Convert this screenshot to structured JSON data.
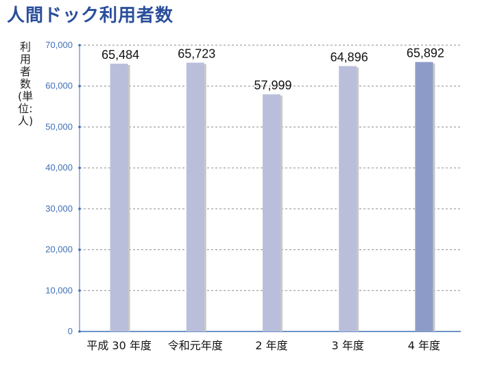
{
  "title": "人間ドック利用者数",
  "chart_data": {
    "type": "bar",
    "title": "人間ドック利用者数",
    "ylabel": "利用者数(単位:人)",
    "xlabel": "",
    "categories": [
      "平成 30 年度",
      "令和元年度",
      "2 年度",
      "3 年度",
      "4 年度"
    ],
    "values": [
      65484,
      65723,
      57999,
      64896,
      65892
    ],
    "value_labels": [
      "65,484",
      "65,723",
      "57,999",
      "64,896",
      "65,892"
    ],
    "yticks": [
      0,
      10000,
      20000,
      30000,
      40000,
      50000,
      60000,
      70000
    ],
    "ytick_labels": [
      "0",
      "10,000",
      "20,000",
      "30,000",
      "40,000",
      "50,000",
      "60,000",
      "70,000"
    ],
    "ylim": [
      0,
      70000
    ],
    "grid": true,
    "legend": "none",
    "colors": {
      "bar": "#b9bfdb",
      "bar_highlight": "#8d9cc7",
      "bar_shadow": "#c8c8c8",
      "grid": "#8a8a8a",
      "axis": "#3f6fb6",
      "tick_text": "#3f6fb6",
      "title": "#2a4e9b"
    },
    "highlight_index": 4
  }
}
